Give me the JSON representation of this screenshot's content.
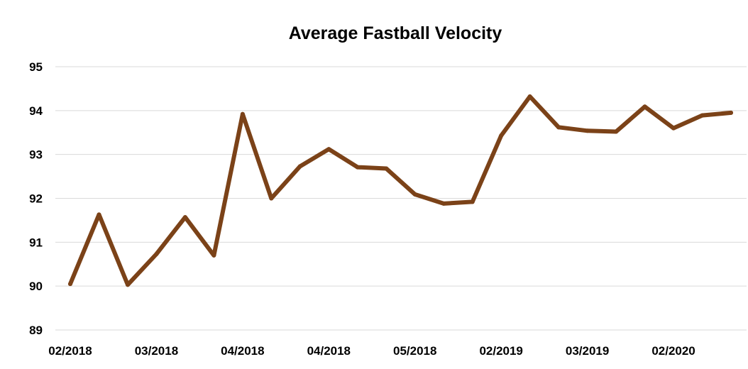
{
  "chart_data": {
    "type": "line",
    "title": "Average Fastball Velocity",
    "xlabel": "",
    "ylabel": "",
    "ylim": [
      89,
      95
    ],
    "yticks": [
      "89",
      "90",
      "91",
      "92",
      "93",
      "94",
      "95"
    ],
    "xtick_labels": [
      "02/2018",
      "03/2018",
      "04/2018",
      "04/2018",
      "05/2018",
      "02/2019",
      "03/2019",
      "02/2020"
    ],
    "grid": true,
    "legend": "none",
    "series": [
      {
        "color": "#7b4218",
        "values": [
          90.05,
          91.63,
          90.03,
          90.73,
          91.57,
          90.7,
          93.92,
          92.0,
          92.73,
          93.12,
          92.71,
          92.68,
          92.09,
          91.88,
          91.92,
          93.43,
          94.32,
          93.62,
          93.54,
          93.52,
          94.09,
          93.6,
          93.89,
          93.95
        ]
      }
    ]
  }
}
